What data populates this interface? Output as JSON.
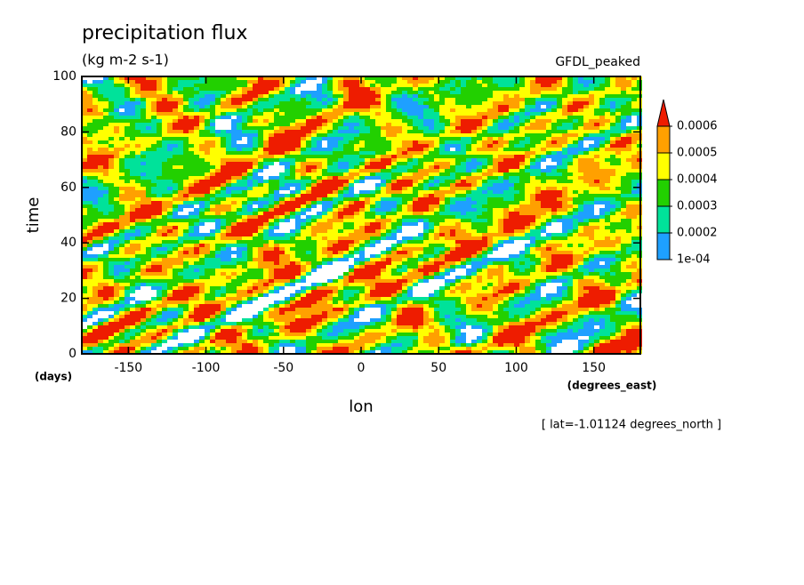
{
  "chart_data": {
    "type": "contour",
    "title": "precipitation flux",
    "subtitle": "(kg m-2 s-1)",
    "dataset": "GFDL_peaked",
    "x_label": "lon",
    "x_unit": "(degrees_east)",
    "y_label": "time",
    "y_unit": "(days)",
    "annotation": "[ lat=-1.01124 degrees_north ]",
    "xlim": [
      -180,
      180
    ],
    "xticks": [
      -150,
      -100,
      -50,
      0,
      50,
      100,
      150
    ],
    "ylim": [
      0,
      100
    ],
    "yticks": [
      0,
      20,
      40,
      60,
      80,
      100
    ],
    "colorbar": {
      "levels": [
        {
          "value": 0.0001,
          "label": "1e-04"
        },
        0.0002,
        0.0003,
        0.0004,
        0.0005,
        0.0006
      ],
      "colors": [
        "#1ea0ff",
        "#00e29a",
        "#22d000",
        "#ffff00",
        "#ffa000",
        "#ee1c00"
      ]
    }
  }
}
